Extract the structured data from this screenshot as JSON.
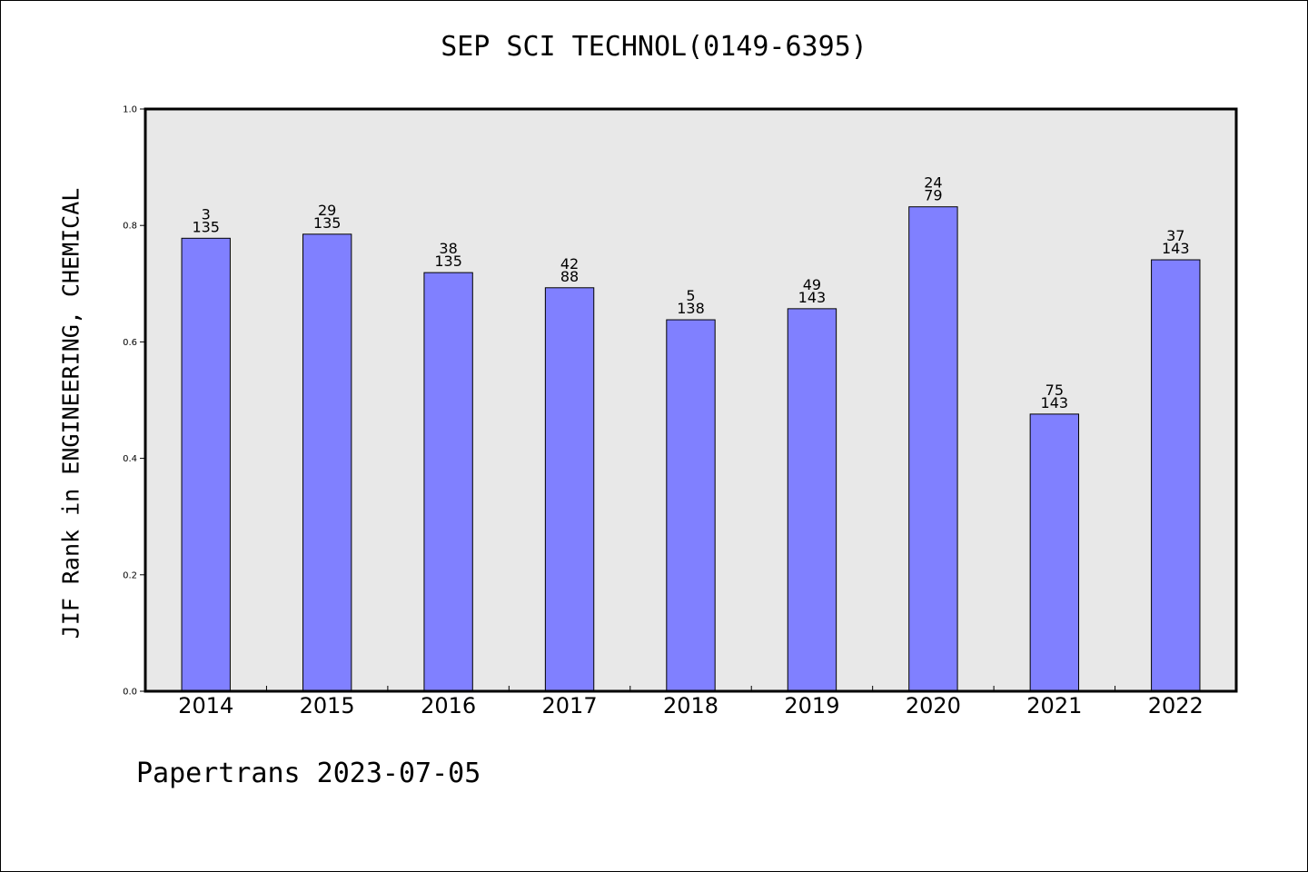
{
  "title": "SEP SCI TECHNOL(0149-6395)",
  "footer": "Papertrans 2023-07-05",
  "chart_data": {
    "type": "bar",
    "title": "SEP SCI TECHNOL(0149-6395)",
    "xlabel": "",
    "ylabel": "JIF Rank in ENGINEERING, CHEMICAL",
    "ylim": [
      0,
      1.0
    ],
    "yticks": [
      "0.0",
      "0.2",
      "0.4",
      "0.6",
      "0.8",
      "1.0"
    ],
    "grid": false,
    "categories": [
      "2014",
      "2015",
      "2016",
      "2017",
      "2018",
      "2019",
      "2020",
      "2021",
      "2022"
    ],
    "values": [
      0.778,
      0.785,
      0.719,
      0.693,
      0.638,
      0.657,
      0.832,
      0.476,
      0.741
    ],
    "labels": [
      {
        "top": "3",
        "bottom": "135"
      },
      {
        "top": "29",
        "bottom": "135"
      },
      {
        "top": "38",
        "bottom": "135"
      },
      {
        "top": "42",
        "bottom": "88"
      },
      {
        "top": "5",
        "bottom": "138"
      },
      {
        "top": "49",
        "bottom": "143"
      },
      {
        "top": "24",
        "bottom": "79"
      },
      {
        "top": "75",
        "bottom": "143"
      },
      {
        "top": "37",
        "bottom": "143"
      }
    ],
    "colors": {
      "bar": "#8080ff",
      "plot_bg": "#e8e8e8",
      "axis": "#000000"
    }
  }
}
